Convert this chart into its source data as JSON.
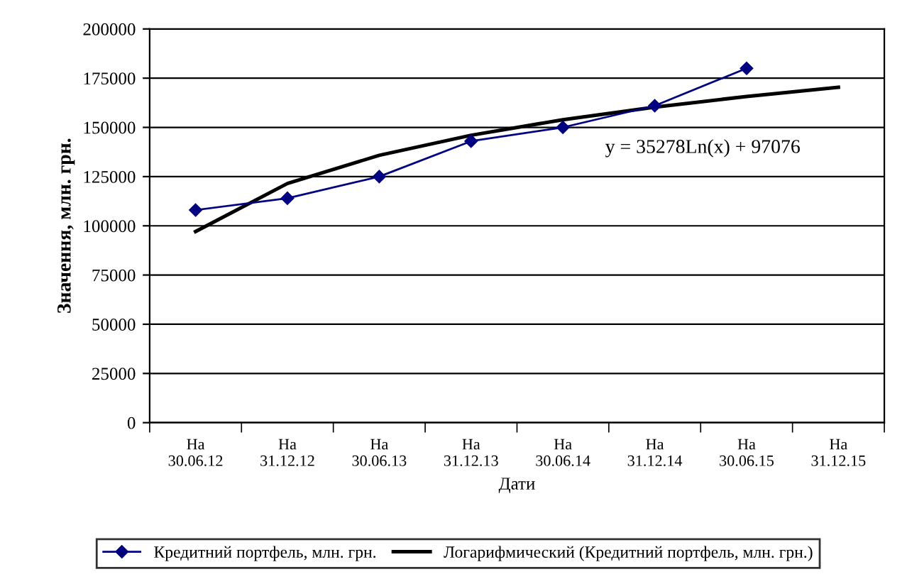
{
  "chart_data": {
    "type": "line",
    "xlabel": "Дати",
    "ylabel": "Значення, млн. грн.",
    "categories": [
      "На\n30.06.12",
      "На\n31.12.12",
      "На\n30.06.13",
      "На\n31.12.13",
      "На\n30.06.14",
      "На\n31.12.14",
      "На\n30.06.15",
      "На\n31.12.15"
    ],
    "series": [
      {
        "name": "Кредитний портфель, млн. грн.",
        "color": "#000080",
        "marker": "diamond",
        "values": [
          108000,
          114000,
          125000,
          143000,
          150000,
          161000,
          180000,
          null
        ]
      },
      {
        "name": "Логарифмический (Кредитний портфель, млн. грн.)",
        "color": "#000000",
        "marker": "none",
        "values": [
          97100,
          121500,
          135800,
          146000,
          153900,
          160300,
          165700,
          170400
        ]
      }
    ],
    "ylim": [
      0,
      200000
    ],
    "yticks": [
      0,
      25000,
      50000,
      75000,
      100000,
      125000,
      150000,
      175000,
      200000
    ],
    "grid": "y",
    "legend": "bottom",
    "annotations": [
      "y = 35278Ln(x) + 97076"
    ]
  }
}
